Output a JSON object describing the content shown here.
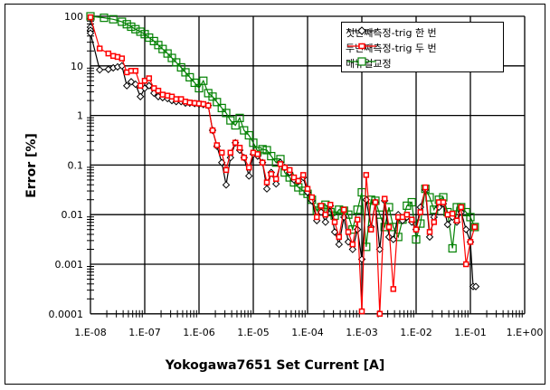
{
  "chart_data": {
    "type": "line",
    "title": "",
    "xlabel": "Yokogawa7651 Set Current [A]",
    "ylabel": "Error [%]",
    "xscale": "log",
    "yscale": "log",
    "xlim": [
      1e-08,
      1
    ],
    "ylim": [
      0.0001,
      100
    ],
    "x_tick_labels": [
      "1.E-08",
      "1.E-07",
      "1.E-06",
      "1.E-05",
      "1.E-04",
      "1.E-03",
      "1.E-02",
      "1.E-01",
      "1.E+00"
    ],
    "y_tick_labels": [
      "100",
      "10",
      "1",
      "0.1",
      "0.01",
      "0.001",
      "0.0001"
    ],
    "grid": true,
    "legend_position": "upper right",
    "series": [
      {
        "name": "첫번째측정-trig 한 번",
        "color": "#000000",
        "marker": "diamond",
        "points": [
          [
            -8.0,
            1.78
          ],
          [
            -8.0,
            1.72
          ],
          [
            -8.0,
            1.66
          ],
          [
            -7.83,
            0.92
          ],
          [
            -7.67,
            0.93
          ],
          [
            -7.58,
            0.96
          ],
          [
            -7.5,
            0.98
          ],
          [
            -7.42,
            1.0
          ],
          [
            -7.33,
            0.6
          ],
          [
            -7.25,
            0.68
          ],
          [
            -7.17,
            0.63
          ],
          [
            -7.08,
            0.38
          ],
          [
            -7.0,
            0.55
          ],
          [
            -6.92,
            0.6
          ],
          [
            -6.83,
            0.45
          ],
          [
            -6.75,
            0.38
          ],
          [
            -6.67,
            0.36
          ],
          [
            -6.58,
            0.34
          ],
          [
            -6.5,
            0.3
          ],
          [
            -6.42,
            0.28
          ],
          [
            -6.33,
            0.28
          ],
          [
            -6.25,
            0.25
          ],
          [
            -6.17,
            0.25
          ],
          [
            -6.08,
            0.24
          ],
          [
            -6.0,
            0.23
          ],
          [
            -5.92,
            0.22
          ],
          [
            -5.83,
            0.2
          ],
          [
            -5.75,
            -0.3
          ],
          [
            -5.67,
            -0.62
          ],
          [
            -5.58,
            -0.95
          ],
          [
            -5.5,
            -1.4
          ],
          [
            -5.42,
            -0.85
          ],
          [
            -5.33,
            -0.55
          ],
          [
            -5.25,
            -0.7
          ],
          [
            -5.17,
            -0.85
          ],
          [
            -5.08,
            -1.22
          ],
          [
            -5.0,
            -0.78
          ],
          [
            -4.92,
            -0.82
          ],
          [
            -4.83,
            -0.95
          ],
          [
            -4.75,
            -1.48
          ],
          [
            -4.67,
            -1.15
          ],
          [
            -4.58,
            -1.38
          ],
          [
            -4.5,
            -0.95
          ],
          [
            -4.42,
            -1.05
          ],
          [
            -4.33,
            -1.15
          ],
          [
            -4.25,
            -1.3
          ],
          [
            -4.17,
            -1.33
          ],
          [
            -4.08,
            -1.25
          ],
          [
            -4.0,
            -1.55
          ],
          [
            -3.92,
            -1.72
          ],
          [
            -3.83,
            -2.12
          ],
          [
            -3.75,
            -1.95
          ],
          [
            -3.67,
            -2.15
          ],
          [
            -3.58,
            -1.82
          ],
          [
            -3.5,
            -2.35
          ],
          [
            -3.42,
            -2.6
          ],
          [
            -3.33,
            -2.05
          ],
          [
            -3.25,
            -2.55
          ],
          [
            -3.17,
            -2.7
          ],
          [
            -3.08,
            -2.3
          ],
          [
            -3.0,
            -2.9
          ],
          [
            -2.92,
            -1.7
          ],
          [
            -2.83,
            -2.25
          ],
          [
            -2.75,
            -1.75
          ],
          [
            -2.67,
            -2.7
          ],
          [
            -2.58,
            -1.72
          ],
          [
            -2.5,
            -2.45
          ],
          [
            -2.42,
            -2.5
          ],
          [
            -2.33,
            -2.0
          ],
          [
            -2.25,
            -2.12
          ],
          [
            -2.17,
            -2.05
          ],
          [
            -2.08,
            -2.15
          ],
          [
            -2.0,
            -2.3
          ],
          [
            -1.92,
            -1.85
          ],
          [
            -1.83,
            -1.5
          ],
          [
            -1.75,
            -2.45
          ],
          [
            -1.67,
            -2.05
          ],
          [
            -1.58,
            -1.85
          ],
          [
            -1.5,
            -1.78
          ],
          [
            -1.42,
            -2.2
          ],
          [
            -1.33,
            -2.05
          ],
          [
            -1.25,
            -2.15
          ],
          [
            -1.17,
            -1.95
          ],
          [
            -1.08,
            -2.3
          ],
          [
            -1.0,
            -2.55
          ],
          [
            -0.95,
            -3.45
          ],
          [
            -0.9,
            -3.45
          ]
        ]
      },
      {
        "name": "두번째측정-trig 두 번",
        "color": "#ff0000",
        "marker": "square",
        "points": [
          [
            -8.0,
            1.98
          ],
          [
            -7.83,
            1.35
          ],
          [
            -7.67,
            1.25
          ],
          [
            -7.58,
            1.2
          ],
          [
            -7.5,
            1.18
          ],
          [
            -7.42,
            1.15
          ],
          [
            -7.33,
            0.87
          ],
          [
            -7.25,
            0.9
          ],
          [
            -7.17,
            0.9
          ],
          [
            -7.08,
            0.6
          ],
          [
            -7.0,
            0.7
          ],
          [
            -6.92,
            0.75
          ],
          [
            -6.83,
            0.55
          ],
          [
            -6.75,
            0.5
          ],
          [
            -6.67,
            0.42
          ],
          [
            -6.58,
            0.4
          ],
          [
            -6.5,
            0.38
          ],
          [
            -6.42,
            0.33
          ],
          [
            -6.33,
            0.33
          ],
          [
            -6.25,
            0.28
          ],
          [
            -6.17,
            0.26
          ],
          [
            -6.08,
            0.25
          ],
          [
            -6.0,
            0.24
          ],
          [
            -5.92,
            0.23
          ],
          [
            -5.83,
            0.2
          ],
          [
            -5.75,
            -0.3
          ],
          [
            -5.67,
            -0.6
          ],
          [
            -5.58,
            -0.75
          ],
          [
            -5.5,
            -1.1
          ],
          [
            -5.42,
            -0.75
          ],
          [
            -5.33,
            -0.55
          ],
          [
            -5.25,
            -0.65
          ],
          [
            -5.17,
            -0.85
          ],
          [
            -5.08,
            -1.05
          ],
          [
            -5.0,
            -0.75
          ],
          [
            -4.92,
            -0.78
          ],
          [
            -4.83,
            -0.95
          ],
          [
            -4.75,
            -1.35
          ],
          [
            -4.67,
            -1.18
          ],
          [
            -4.58,
            -1.28
          ],
          [
            -4.5,
            -0.98
          ],
          [
            -4.42,
            -1.05
          ],
          [
            -4.33,
            -1.1
          ],
          [
            -4.25,
            -1.25
          ],
          [
            -4.17,
            -1.32
          ],
          [
            -4.08,
            -1.2
          ],
          [
            -4.0,
            -1.48
          ],
          [
            -3.92,
            -1.65
          ],
          [
            -3.83,
            -2.05
          ],
          [
            -3.75,
            -1.82
          ],
          [
            -3.67,
            -2.0
          ],
          [
            -3.58,
            -1.8
          ],
          [
            -3.5,
            -2.15
          ],
          [
            -3.42,
            -2.45
          ],
          [
            -3.33,
            -1.9
          ],
          [
            -3.25,
            -2.35
          ],
          [
            -3.17,
            -2.6
          ],
          [
            -3.08,
            -2.1
          ],
          [
            -3.0,
            -3.95
          ],
          [
            -2.92,
            -1.2
          ],
          [
            -2.83,
            -2.3
          ],
          [
            -2.75,
            -1.75
          ],
          [
            -2.67,
            -4.0
          ],
          [
            -2.58,
            -1.68
          ],
          [
            -2.5,
            -2.25
          ],
          [
            -2.42,
            -3.5
          ],
          [
            -2.33,
            -2.05
          ],
          [
            -2.25,
            -2.05
          ],
          [
            -2.17,
            -2.0
          ],
          [
            -2.08,
            -2.1
          ],
          [
            -2.0,
            -2.3
          ],
          [
            -1.92,
            -1.95
          ],
          [
            -1.83,
            -1.45
          ],
          [
            -1.75,
            -2.35
          ],
          [
            -1.67,
            -2.15
          ],
          [
            -1.58,
            -1.75
          ],
          [
            -1.5,
            -1.75
          ],
          [
            -1.42,
            -2.0
          ],
          [
            -1.33,
            -1.98
          ],
          [
            -1.25,
            -2.12
          ],
          [
            -1.17,
            -1.85
          ],
          [
            -1.08,
            -3.0
          ],
          [
            -1.0,
            -2.55
          ],
          [
            -0.92,
            -2.25
          ]
        ]
      },
      {
        "name": "매뉴얼교정",
        "color": "#008000",
        "marker": "square",
        "points": [
          [
            -8.0,
            2.0
          ],
          [
            -7.75,
            1.97
          ],
          [
            -7.58,
            1.94
          ],
          [
            -7.42,
            1.89
          ],
          [
            -7.33,
            1.84
          ],
          [
            -7.25,
            1.79
          ],
          [
            -7.17,
            1.74
          ],
          [
            -7.08,
            1.69
          ],
          [
            -7.0,
            1.64
          ],
          [
            -6.92,
            1.57
          ],
          [
            -6.83,
            1.5
          ],
          [
            -6.75,
            1.42
          ],
          [
            -6.67,
            1.34
          ],
          [
            -6.58,
            1.25
          ],
          [
            -6.5,
            1.16
          ],
          [
            -6.42,
            1.07
          ],
          [
            -6.33,
            0.97
          ],
          [
            -6.25,
            0.87
          ],
          [
            -6.17,
            0.77
          ],
          [
            -6.08,
            0.66
          ],
          [
            -6.0,
            0.55
          ],
          [
            -5.92,
            0.7
          ],
          [
            -5.83,
            0.45
          ],
          [
            -5.75,
            0.38
          ],
          [
            -5.67,
            0.27
          ],
          [
            -5.58,
            0.15
          ],
          [
            -5.5,
            0.05
          ],
          [
            -5.42,
            -0.1
          ],
          [
            -5.33,
            -0.2
          ],
          [
            -5.25,
            -0.05
          ],
          [
            -5.17,
            -0.3
          ],
          [
            -5.08,
            -0.4
          ],
          [
            -5.0,
            -0.55
          ],
          [
            -4.92,
            -0.72
          ],
          [
            -4.83,
            -0.68
          ],
          [
            -4.75,
            -0.7
          ],
          [
            -4.67,
            -0.82
          ],
          [
            -4.58,
            -0.95
          ],
          [
            -4.5,
            -0.88
          ],
          [
            -4.42,
            -1.15
          ],
          [
            -4.33,
            -1.25
          ],
          [
            -4.25,
            -1.35
          ],
          [
            -4.17,
            -1.45
          ],
          [
            -4.08,
            -1.52
          ],
          [
            -4.0,
            -1.58
          ],
          [
            -3.92,
            -1.7
          ],
          [
            -3.83,
            -1.92
          ],
          [
            -3.75,
            -1.85
          ],
          [
            -3.67,
            -1.8
          ],
          [
            -3.58,
            -1.95
          ],
          [
            -3.5,
            -2.02
          ],
          [
            -3.42,
            -1.9
          ],
          [
            -3.33,
            -1.92
          ],
          [
            -3.25,
            -2.0
          ],
          [
            -3.17,
            -2.3
          ],
          [
            -3.08,
            -1.9
          ],
          [
            -3.0,
            -1.55
          ],
          [
            -2.92,
            -2.65
          ],
          [
            -2.83,
            -1.7
          ],
          [
            -2.75,
            -1.72
          ],
          [
            -2.67,
            -2.0
          ],
          [
            -2.58,
            -2.25
          ],
          [
            -2.5,
            -1.85
          ],
          [
            -2.42,
            -2.25
          ],
          [
            -2.33,
            -2.45
          ],
          [
            -2.25,
            -2.1
          ],
          [
            -2.17,
            -1.82
          ],
          [
            -2.08,
            -1.75
          ],
          [
            -2.0,
            -2.5
          ],
          [
            -1.92,
            -2.18
          ],
          [
            -1.83,
            -1.48
          ],
          [
            -1.75,
            -1.65
          ],
          [
            -1.67,
            -1.9
          ],
          [
            -1.58,
            -1.7
          ],
          [
            -1.5,
            -1.65
          ],
          [
            -1.42,
            -1.95
          ],
          [
            -1.33,
            -2.68
          ],
          [
            -1.25,
            -1.85
          ],
          [
            -1.17,
            -1.85
          ],
          [
            -1.08,
            -1.95
          ],
          [
            -1.0,
            -2.05
          ],
          [
            -0.92,
            -2.25
          ]
        ]
      }
    ]
  }
}
